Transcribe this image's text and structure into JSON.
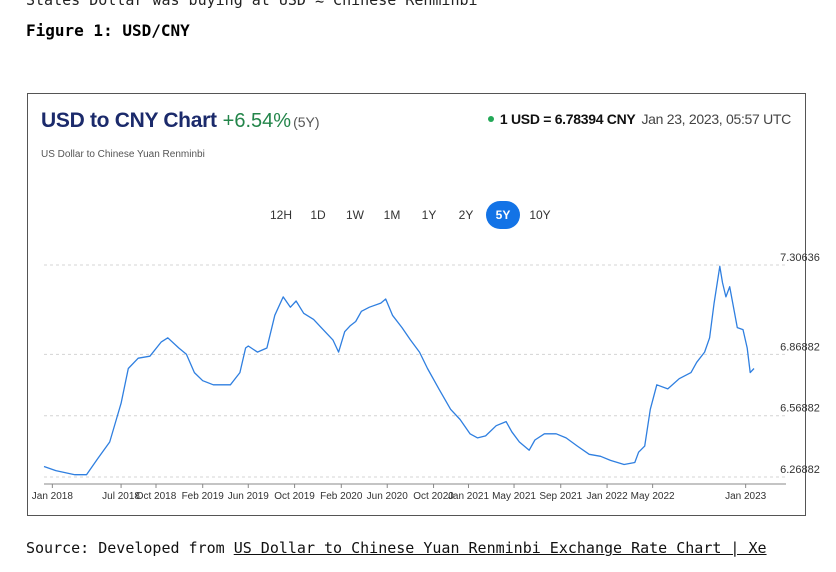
{
  "page": {
    "top_cut_text": "States Dollar was buying at USD ≈ Chinese Renminbi",
    "figure_title": "Figure 1: USD/CNY",
    "source_prefix": "Source: Developed from ",
    "source_link": "US Dollar to Chinese Yuan Renminbi Exchange Rate Chart | Xe"
  },
  "chart_header": {
    "title": "USD to CNY Chart",
    "change": "+6.54%",
    "period": "(5Y)",
    "subtitle": "US Dollar to Chinese Yuan Renminbi",
    "rate": "1 USD = 6.78394 CNY",
    "timestamp": "Jan 23, 2023, 05:57 UTC",
    "colors": {
      "title": "#1b2a6b",
      "change": "#23854a",
      "line": "#2f7fe0",
      "active_tab": "#1373e6"
    }
  },
  "range_tabs": [
    {
      "label": "12H",
      "active": false
    },
    {
      "label": "1D",
      "active": false
    },
    {
      "label": "1W",
      "active": false
    },
    {
      "label": "1M",
      "active": false
    },
    {
      "label": "1Y",
      "active": false
    },
    {
      "label": "2Y",
      "active": false
    },
    {
      "label": "5Y",
      "active": true
    },
    {
      "label": "10Y",
      "active": false
    }
  ],
  "chart_data": {
    "type": "line",
    "title": "USD to CNY Chart",
    "subtitle": "US Dollar to Chinese Yuan Renminbi",
    "xlabel": "",
    "ylabel": "",
    "ylim": [
      6.26882,
      7.30636
    ],
    "y_ticks": [
      {
        "value": 7.30636,
        "label": "7.30636"
      },
      {
        "value": 6.86882,
        "label": "6.86882"
      },
      {
        "value": 6.56882,
        "label": "6.56882"
      },
      {
        "value": 6.26882,
        "label": "6.26882"
      }
    ],
    "x_ticks": [
      "Jan 2018",
      "Jul 2018",
      "Oct 2018",
      "Feb 2019",
      "Jun 2019",
      "Oct 2019",
      "Feb 2020",
      "Jun 2020",
      "Oct 2020",
      "Jan 2021",
      "May 2021",
      "Sep 2021",
      "Jan 2022",
      "May 2022",
      "Jan 2023"
    ],
    "x_tick_dates": [
      "2018-01-01",
      "2018-07-01",
      "2018-10-01",
      "2019-02-01",
      "2019-06-01",
      "2019-10-01",
      "2020-02-01",
      "2020-06-01",
      "2020-10-01",
      "2021-01-01",
      "2021-05-01",
      "2021-09-01",
      "2022-01-01",
      "2022-05-01",
      "2023-01-01"
    ],
    "xlim": [
      "2017-12-10",
      "2023-01-23"
    ],
    "grid": true,
    "series": [
      {
        "x": [
          "2017-12-10",
          "2018-01-10",
          "2018-02-05",
          "2018-03-01",
          "2018-04-01",
          "2018-05-01",
          "2018-06-01",
          "2018-06-20",
          "2018-07-01",
          "2018-07-20",
          "2018-08-15",
          "2018-09-15",
          "2018-10-15",
          "2018-11-01",
          "2018-11-30",
          "2018-12-20",
          "2019-01-10",
          "2019-02-01",
          "2019-03-01",
          "2019-04-15",
          "2019-05-10",
          "2019-05-25",
          "2019-06-01",
          "2019-06-25",
          "2019-07-20",
          "2019-08-10",
          "2019-09-01",
          "2019-09-20",
          "2019-10-05",
          "2019-10-25",
          "2019-11-20",
          "2019-12-10",
          "2020-01-10",
          "2020-01-25",
          "2020-02-10",
          "2020-02-25",
          "2020-03-10",
          "2020-03-25",
          "2020-04-15",
          "2020-05-15",
          "2020-05-28",
          "2020-06-15",
          "2020-07-10",
          "2020-08-01",
          "2020-08-25",
          "2020-09-15",
          "2020-10-15",
          "2020-11-15",
          "2020-12-10",
          "2021-01-05",
          "2021-01-25",
          "2021-02-15",
          "2021-03-15",
          "2021-04-10",
          "2021-04-25",
          "2021-05-15",
          "2021-06-10",
          "2021-06-25",
          "2021-07-20",
          "2021-08-20",
          "2021-09-15",
          "2021-10-15",
          "2021-11-15",
          "2021-12-15",
          "2022-01-10",
          "2022-02-15",
          "2022-03-15",
          "2022-03-25",
          "2022-04-10",
          "2022-04-25",
          "2022-05-12",
          "2022-06-10",
          "2022-07-10",
          "2022-08-10",
          "2022-08-25",
          "2022-09-15",
          "2022-09-28",
          "2022-10-10",
          "2022-10-25",
          "2022-11-01",
          "2022-11-10",
          "2022-11-20",
          "2022-12-10",
          "2022-12-25",
          "2023-01-05",
          "2023-01-13",
          "2023-01-23"
        ],
        "y": [
          6.32,
          6.3,
          6.29,
          6.28,
          6.28,
          6.36,
          6.44,
          6.56,
          6.63,
          6.8,
          6.85,
          6.86,
          6.93,
          6.95,
          6.9,
          6.87,
          6.78,
          6.74,
          6.72,
          6.72,
          6.78,
          6.9,
          6.91,
          6.88,
          6.9,
          7.06,
          7.15,
          7.1,
          7.13,
          7.07,
          7.04,
          7.0,
          6.94,
          6.88,
          6.98,
          7.01,
          7.03,
          7.08,
          7.1,
          7.12,
          7.14,
          7.06,
          7.0,
          6.94,
          6.88,
          6.8,
          6.7,
          6.6,
          6.55,
          6.48,
          6.46,
          6.47,
          6.52,
          6.54,
          6.49,
          6.44,
          6.4,
          6.45,
          6.48,
          6.48,
          6.46,
          6.42,
          6.38,
          6.37,
          6.35,
          6.33,
          6.34,
          6.39,
          6.42,
          6.6,
          6.72,
          6.7,
          6.75,
          6.78,
          6.83,
          6.88,
          6.95,
          7.12,
          7.3,
          7.22,
          7.15,
          7.2,
          7.0,
          6.99,
          6.9,
          6.78,
          6.8
        ]
      }
    ]
  }
}
